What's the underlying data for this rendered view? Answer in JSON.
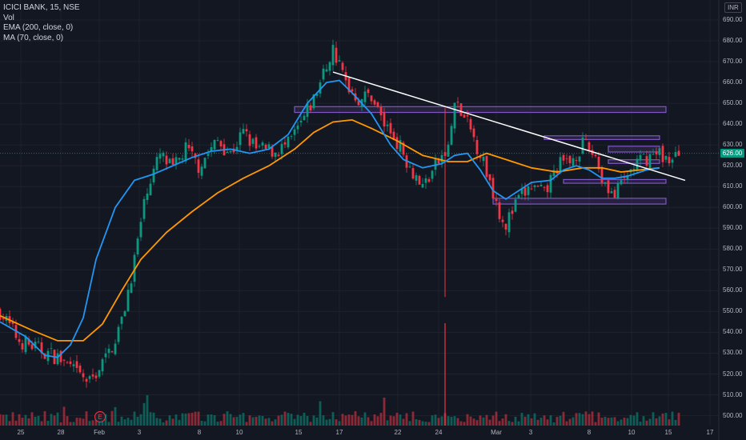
{
  "legend": {
    "symbol": "ICICI BANK, 15, NSE",
    "vol": "Vol",
    "ema": "EMA (200, close, 0)",
    "ma": "MA (70, close, 0)"
  },
  "currency": "INR",
  "last_price_label": "626.00",
  "event_badge": "E",
  "colors": {
    "background": "#131722",
    "up": "#089981",
    "down": "#f23645",
    "ema": "#2196f3",
    "ma": "#ff9800",
    "trendline": "#ffffff",
    "zones": "#7e57c2"
  },
  "chart_data": {
    "type": "candlestick",
    "ylim": [
      500,
      695
    ],
    "y_ticks": [
      "690.00",
      "680.00",
      "670.00",
      "660.00",
      "650.00",
      "640.00",
      "630.00",
      "620.00",
      "610.00",
      "600.00",
      "590.00",
      "580.00",
      "570.00",
      "560.00",
      "550.00",
      "540.00",
      "530.00",
      "520.00",
      "510.00",
      "500.00"
    ],
    "x_ticks": [
      "25",
      "28",
      "Feb",
      "3",
      "8",
      "10",
      "15",
      "17",
      "22",
      "24",
      "Mar",
      "3",
      "8",
      "10",
      "15",
      "17"
    ],
    "price_path": [
      [
        0,
        550
      ],
      [
        3,
        536
      ],
      [
        6,
        532
      ],
      [
        9,
        528
      ],
      [
        12,
        520
      ],
      [
        14,
        516
      ],
      [
        17,
        530
      ],
      [
        19,
        545
      ],
      [
        21,
        575
      ],
      [
        23,
        610
      ],
      [
        25,
        625
      ],
      [
        27,
        618
      ],
      [
        29,
        628
      ],
      [
        31,
        620
      ],
      [
        34,
        632
      ],
      [
        36,
        626
      ],
      [
        38,
        636
      ],
      [
        40,
        628
      ],
      [
        43,
        627
      ],
      [
        45,
        630
      ],
      [
        47,
        640
      ],
      [
        49,
        652
      ],
      [
        51,
        668
      ],
      [
        52,
        676
      ],
      [
        54,
        660
      ],
      [
        56,
        652
      ],
      [
        58,
        654
      ],
      [
        60,
        640
      ],
      [
        62,
        632
      ],
      [
        64,
        620
      ],
      [
        66,
        610
      ],
      [
        68,
        620
      ],
      [
        70,
        628
      ],
      [
        71,
        650
      ],
      [
        73,
        640
      ],
      [
        75,
        626
      ],
      [
        77,
        608
      ],
      [
        78,
        598
      ],
      [
        79,
        592
      ],
      [
        81,
        604
      ],
      [
        83,
        610
      ],
      [
        85,
        606
      ],
      [
        87,
        620
      ],
      [
        89,
        622
      ],
      [
        91,
        630
      ],
      [
        93,
        625
      ],
      [
        94,
        614
      ],
      [
        95,
        610
      ],
      [
        96,
        605
      ],
      [
        97,
        611
      ],
      [
        99,
        620
      ],
      [
        101,
        624
      ],
      [
        103,
        626
      ],
      [
        105,
        622
      ],
      [
        106,
        626
      ]
    ],
    "ema_200": [
      [
        0,
        545
      ],
      [
        4,
        538
      ],
      [
        7,
        529
      ],
      [
        9,
        528
      ],
      [
        11,
        534
      ],
      [
        13,
        547
      ],
      [
        15,
        575
      ],
      [
        18,
        600
      ],
      [
        21,
        613
      ],
      [
        24,
        616
      ],
      [
        27,
        620
      ],
      [
        30,
        624
      ],
      [
        33,
        627
      ],
      [
        36,
        628
      ],
      [
        39,
        626
      ],
      [
        42,
        628
      ],
      [
        45,
        635
      ],
      [
        48,
        650
      ],
      [
        51,
        660
      ],
      [
        53,
        661
      ],
      [
        55,
        655
      ],
      [
        58,
        645
      ],
      [
        61,
        630
      ],
      [
        63,
        623
      ],
      [
        66,
        619
      ],
      [
        69,
        621
      ],
      [
        71,
        625
      ],
      [
        73,
        626
      ],
      [
        75,
        618
      ],
      [
        77,
        608
      ],
      [
        79,
        604
      ],
      [
        81,
        608
      ],
      [
        83,
        612
      ],
      [
        86,
        613
      ],
      [
        88,
        618
      ],
      [
        90,
        620
      ],
      [
        92,
        618
      ],
      [
        94,
        614
      ],
      [
        96,
        614
      ],
      [
        98,
        615
      ],
      [
        101,
        618
      ],
      [
        103,
        619
      ]
    ],
    "ma_70": [
      [
        0,
        548
      ],
      [
        5,
        541
      ],
      [
        9,
        536
      ],
      [
        13,
        536
      ],
      [
        16,
        544
      ],
      [
        19,
        560
      ],
      [
        22,
        575
      ],
      [
        26,
        588
      ],
      [
        30,
        598
      ],
      [
        34,
        607
      ],
      [
        38,
        614
      ],
      [
        42,
        620
      ],
      [
        46,
        628
      ],
      [
        49,
        636
      ],
      [
        52,
        641
      ],
      [
        55,
        642
      ],
      [
        58,
        638
      ],
      [
        62,
        632
      ],
      [
        66,
        625
      ],
      [
        70,
        622
      ],
      [
        73,
        622
      ],
      [
        76,
        626
      ],
      [
        79,
        623
      ],
      [
        83,
        619
      ],
      [
        87,
        617
      ],
      [
        91,
        619
      ],
      [
        94,
        619
      ],
      [
        97,
        617
      ],
      [
        100,
        618
      ],
      [
        103,
        619
      ]
    ],
    "trendline": [
      [
        52,
        665
      ],
      [
        107,
        613
      ]
    ],
    "zones": [
      {
        "x0": 46,
        "x1": 104,
        "low": 646,
        "high": 648
      },
      {
        "x0": 85,
        "x1": 103,
        "low": 633,
        "high": 634
      },
      {
        "x0": 95,
        "x1": 103,
        "low": 627,
        "high": 629
      },
      {
        "x0": 95,
        "x1": 103,
        "low": 621.5,
        "high": 622.5
      },
      {
        "x0": 88,
        "x1": 104,
        "low": 612,
        "high": 613
      },
      {
        "x0": 77,
        "x1": 104,
        "low": 602,
        "high": 604
      }
    ],
    "spike": {
      "x": 69.5,
      "low": 557,
      "high": 648
    }
  }
}
